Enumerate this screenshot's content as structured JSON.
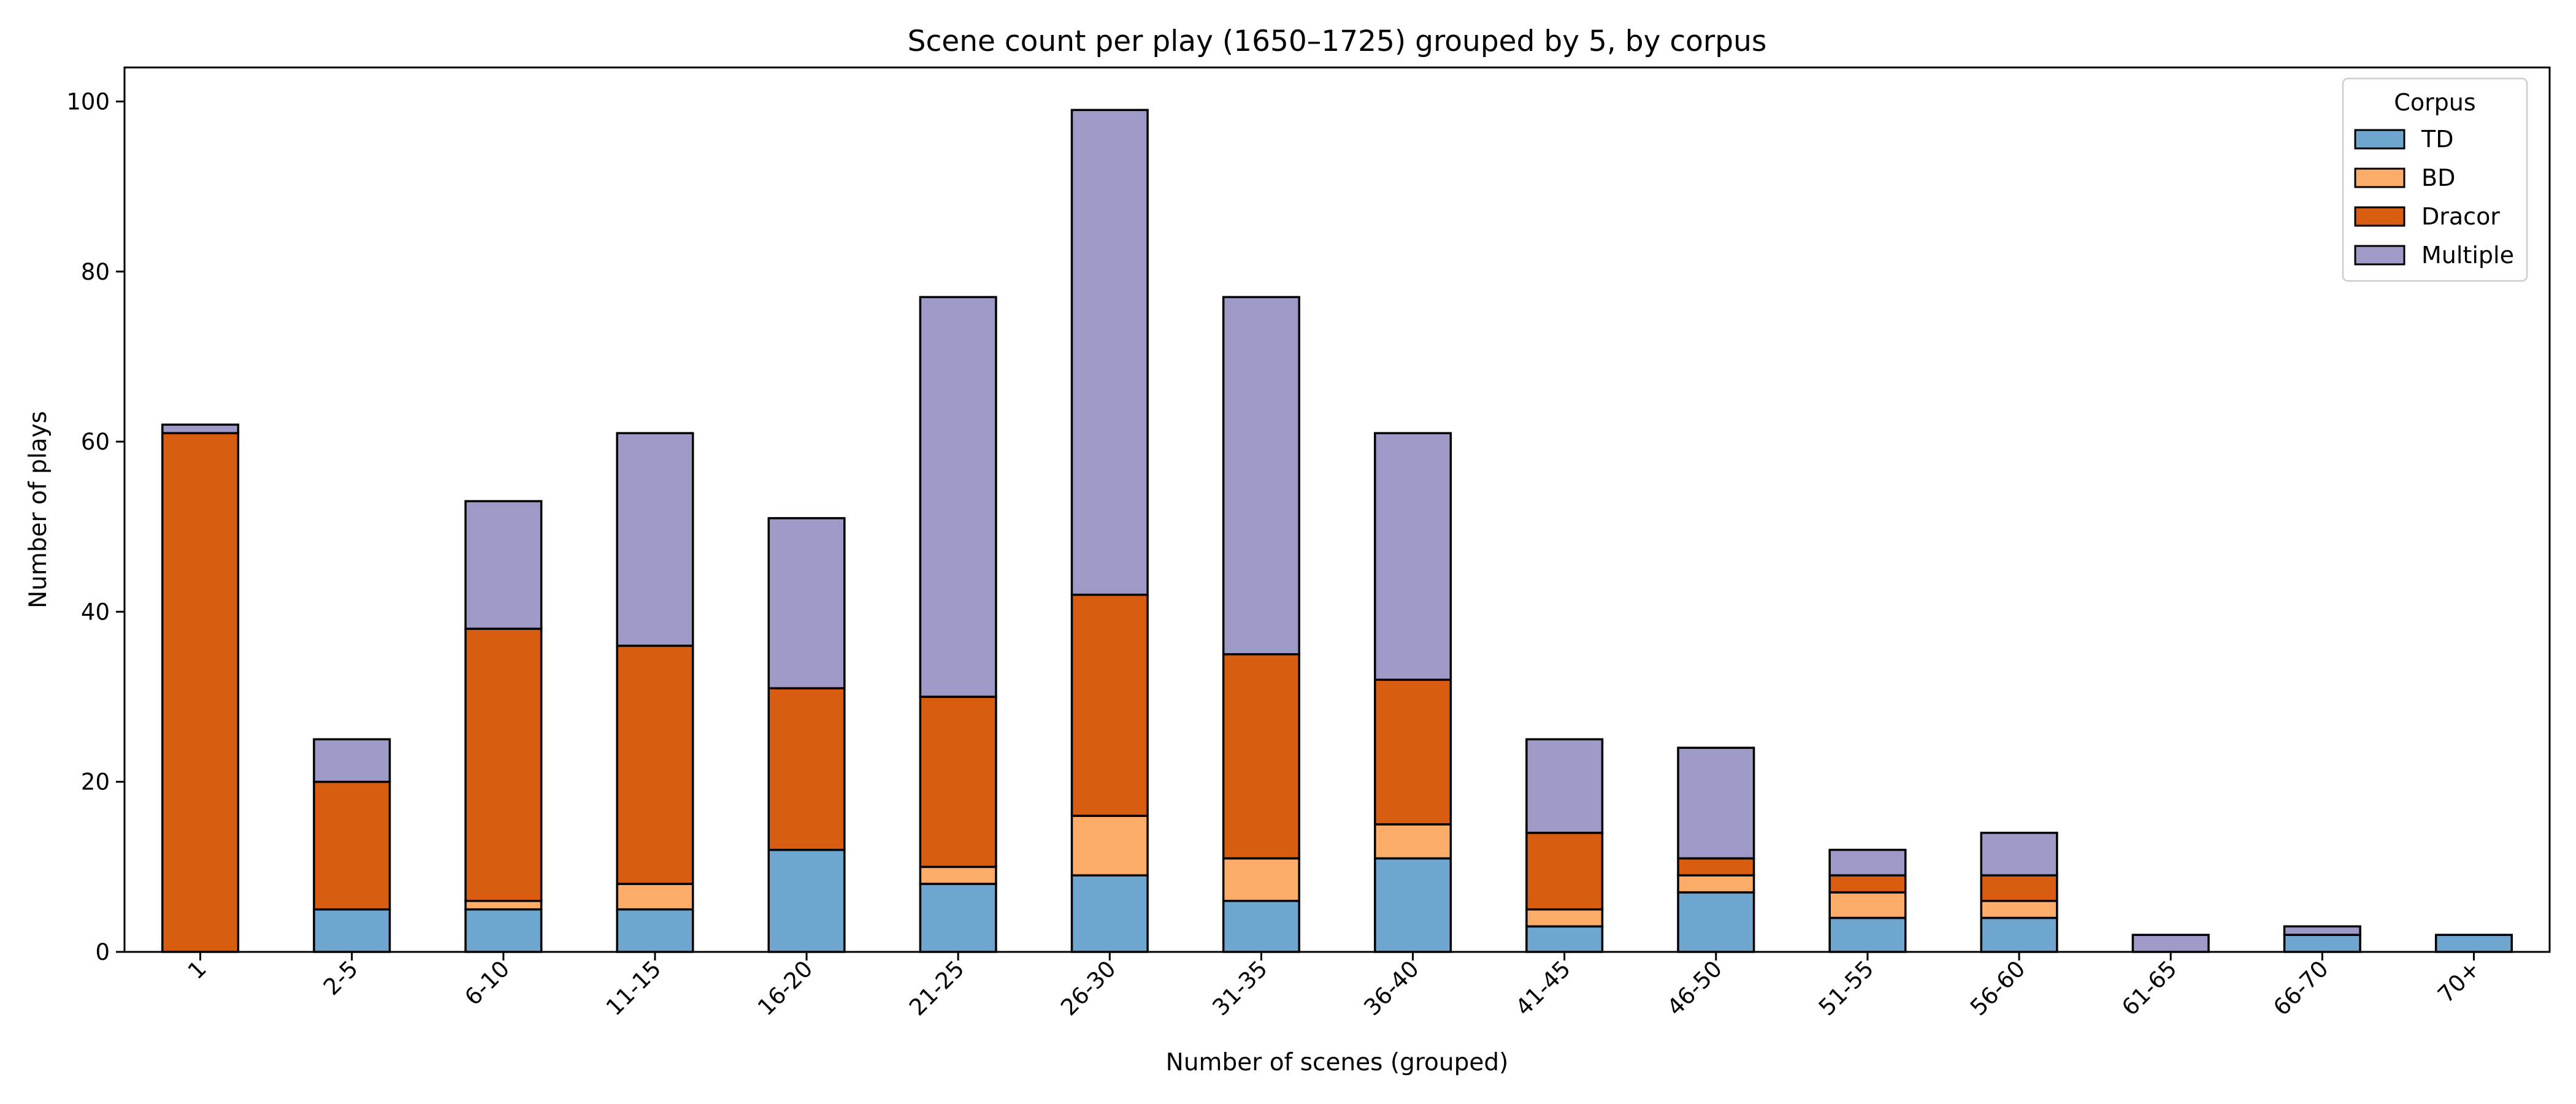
{
  "chart_data": {
    "type": "bar",
    "stacked": true,
    "title": "Scene count per play (1650–1725) grouped by 5, by corpus",
    "xlabel": "Number of scenes (grouped)",
    "ylabel": "Number of plays",
    "ylim": [
      0,
      104
    ],
    "yticks": [
      0,
      20,
      40,
      60,
      80,
      100
    ],
    "grid": false,
    "categories": [
      "1",
      "2-5",
      "6-10",
      "11-15",
      "16-20",
      "21-25",
      "26-30",
      "31-35",
      "36-40",
      "41-45",
      "46-50",
      "51-55",
      "56-60",
      "61-65",
      "66-70",
      "70+"
    ],
    "legend": {
      "title": "Corpus",
      "placement": "top-right"
    },
    "series": [
      {
        "name": "TD",
        "color": "#6fa6cf",
        "values": [
          0,
          5,
          5,
          5,
          12,
          8,
          9,
          6,
          11,
          3,
          7,
          4,
          4,
          0,
          2,
          2
        ]
      },
      {
        "name": "BD",
        "color": "#fdac6a",
        "values": [
          0,
          0,
          1,
          3,
          0,
          2,
          7,
          5,
          4,
          2,
          2,
          3,
          2,
          0,
          0,
          0
        ]
      },
      {
        "name": "Dracor",
        "color": "#d95d10",
        "values": [
          61,
          15,
          32,
          28,
          19,
          20,
          26,
          24,
          17,
          9,
          2,
          2,
          3,
          0,
          0,
          0
        ]
      },
      {
        "name": "Multiple",
        "color": "#9e9ac8",
        "values": [
          1,
          5,
          15,
          25,
          20,
          47,
          57,
          42,
          29,
          11,
          13,
          3,
          5,
          2,
          1,
          0
        ]
      }
    ]
  }
}
